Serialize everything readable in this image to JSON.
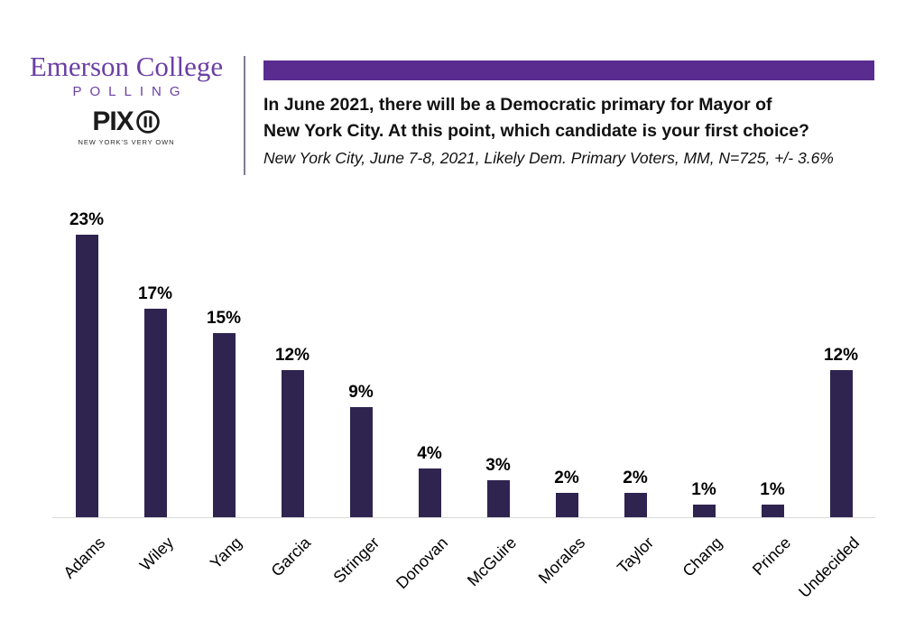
{
  "header": {
    "logo": {
      "name": "Emerson College",
      "subname": "POLLING",
      "pix": "PIX",
      "pix_icon": "circle-11-icon",
      "tagline": "NEW YORK'S VERY OWN"
    },
    "band_color": "#5B2C90",
    "title_line1": "In June 2021, there will be a Democratic primary for Mayor of",
    "title_line2": "New York City. At this point, which candidate is your first choice?",
    "subtitle": "New York City, June 7-8, 2021, Likely Dem. Primary Voters, MM, N=725, +/- 3.6%"
  },
  "chart_data": {
    "type": "bar",
    "title": "In June 2021, there will be a Democratic primary for Mayor of New York City. At this point, which candidate is your first choice?",
    "subtitle": "New York City, June 7-8, 2021, Likely Dem. Primary Voters, MM, N=725, +/- 3.6%",
    "categories": [
      "Adams",
      "Wiley",
      "Yang",
      "Garcia",
      "Stringer",
      "Donovan",
      "McGuire",
      "Morales",
      "Taylor",
      "Chang",
      "Prince",
      "Undecided"
    ],
    "values": [
      23,
      17,
      15,
      12,
      9,
      4,
      3,
      2,
      2,
      1,
      1,
      12
    ],
    "value_labels": [
      "23%",
      "17%",
      "15%",
      "12%",
      "9%",
      "4%",
      "3%",
      "2%",
      "2%",
      "1%",
      "1%",
      "12%"
    ],
    "xlabel": "",
    "ylabel": "",
    "ylim": [
      0,
      25
    ],
    "grid": false,
    "legend": false,
    "label_rotation": 45,
    "bar_color": "#2F2450",
    "axis_line_color": "#d9d9d9",
    "value_label_color": "#000000"
  }
}
